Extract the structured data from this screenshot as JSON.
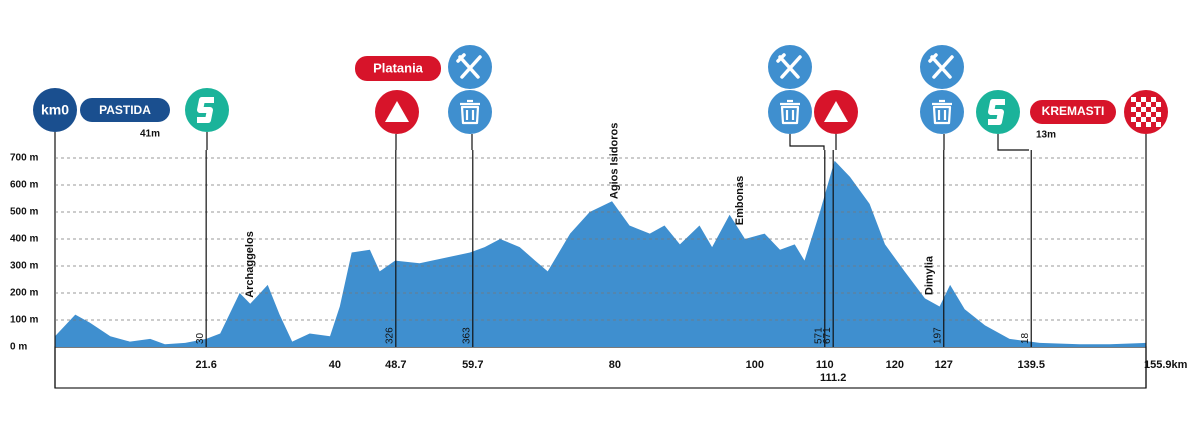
{
  "chart_data": {
    "type": "area",
    "color": "#3f8fcf",
    "x": [
      0,
      2.9,
      5,
      7.9,
      10.7,
      13.6,
      15.7,
      18.6,
      21.6,
      23.6,
      26.4,
      27.9,
      30.4,
      32.1,
      33.9,
      36.4,
      39.3,
      40.7,
      42.4,
      45,
      46.4,
      48.6,
      52.1,
      55.7,
      59.3,
      61.4,
      63.6,
      66.4,
      68.6,
      70.4,
      73.6,
      76.4,
      79.6,
      82.1,
      85,
      87.1,
      89.3,
      92.1,
      93.9,
      96.4,
      98.6,
      101.4,
      103.6,
      105.7,
      107.1,
      109.3,
      111.4,
      113.6,
      116.4,
      118.6,
      121.4,
      124.3,
      126.4,
      127.9,
      130,
      132.9,
      136.4,
      140.7,
      146.4,
      150.7,
      155.9
    ],
    "values": [
      40,
      120,
      90,
      40,
      20,
      30,
      10,
      15,
      30,
      50,
      200,
      160,
      230,
      120,
      20,
      50,
      40,
      150,
      350,
      360,
      280,
      320,
      310,
      330,
      350,
      370,
      400,
      370,
      320,
      280,
      420,
      500,
      540,
      450,
      420,
      450,
      380,
      450,
      370,
      490,
      400,
      420,
      360,
      380,
      320,
      500,
      690,
      630,
      530,
      380,
      280,
      180,
      150,
      230,
      140,
      80,
      30,
      15,
      10,
      10,
      15
    ],
    "xlim": [
      0,
      155.9
    ],
    "ylim": [
      0,
      700
    ],
    "yticks": [
      {
        "value": 0,
        "label": "0 m"
      },
      {
        "value": 100,
        "label": "100 m"
      },
      {
        "value": 200,
        "label": "200 m"
      },
      {
        "value": 300,
        "label": "300 m"
      },
      {
        "value": 400,
        "label": "400 m"
      },
      {
        "value": 500,
        "label": "500 m"
      },
      {
        "value": 600,
        "label": "600 m"
      },
      {
        "value": 700,
        "label": "700 m"
      }
    ],
    "xticks": [
      21.6,
      40,
      48.7,
      59.7,
      80,
      100,
      110,
      111.2,
      120,
      127,
      139.5,
      {
        "value": 155.9,
        "label": "155.9km"
      }
    ],
    "grid": true,
    "markers": [
      {
        "x": 21.6,
        "elevation": 30
      },
      {
        "x": 48.7,
        "elevation": 326
      },
      {
        "x": 59.7,
        "elevation": 363
      },
      {
        "x": 110,
        "elevation": 571
      },
      {
        "x": 111.2,
        "elevation": 671
      },
      {
        "x": 127,
        "elevation": 197
      },
      {
        "x": 139.5,
        "elevation": 18
      }
    ],
    "places": [
      {
        "name": "Archaggelos",
        "x": 27.9
      },
      {
        "name": "Agios Isidoros",
        "x": 80
      },
      {
        "name": "Embonas",
        "x": 97.9
      },
      {
        "name": "Dimylia",
        "x": 125
      }
    ],
    "start": {
      "label": "km0",
      "town": "PASTIDA",
      "altitude": "41m"
    },
    "climb": "Platania",
    "finish": {
      "town": "KREMASTI",
      "altitude": "13m"
    }
  }
}
